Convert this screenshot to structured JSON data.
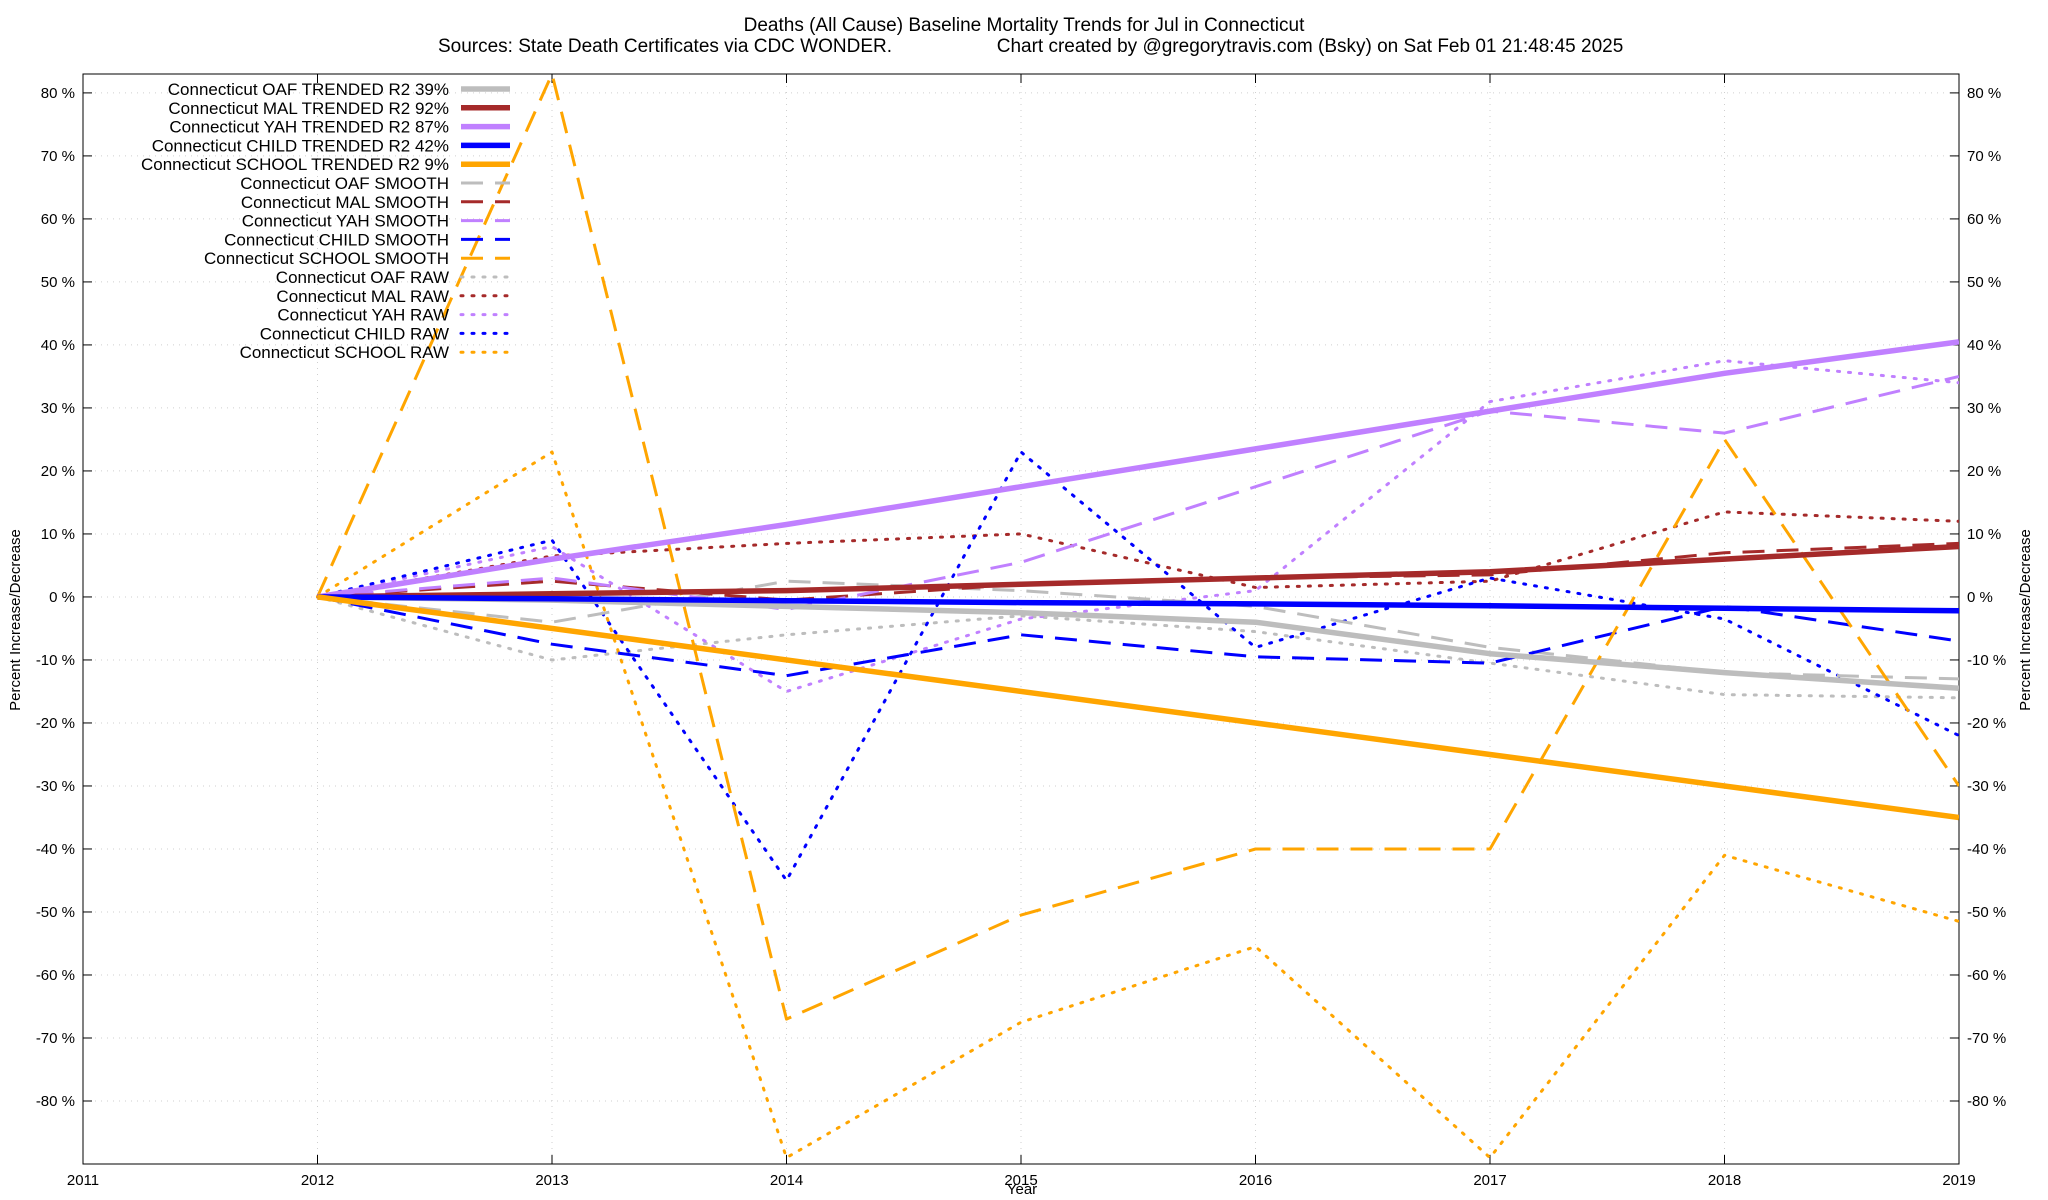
{
  "chart_data": {
    "type": "line",
    "title": "Deaths (All Cause)  Baseline Mortality Trends for Jul in Connecticut",
    "subtitle_left": "Sources: State Death Certificates via CDC WONDER.",
    "subtitle_right": "Chart created by @gregorytravis.com (Bsky) on Sat Feb 01 21:48:45 2025",
    "xlabel": "Year",
    "ylabel": "Percent Increase/Decrease",
    "ylabel_right": "Percent Increase/Decrease",
    "xlim": [
      2011,
      2019
    ],
    "ylim": [
      -90,
      83
    ],
    "x_ticks": [
      2011,
      2012,
      2013,
      2014,
      2015,
      2016,
      2017,
      2018,
      2019
    ],
    "y_ticks": [
      80,
      70,
      60,
      50,
      40,
      30,
      20,
      10,
      0,
      -10,
      -20,
      -30,
      -40,
      -50,
      -60,
      -70,
      -80
    ],
    "y_tick_suffix": " %",
    "grid": true,
    "legend_position": "top-left",
    "series": [
      {
        "name": "Connecticut OAF TRENDED R2  39%",
        "style": "trend",
        "color": "#bdbdbd",
        "x": [
          2012,
          2013,
          2014,
          2015,
          2016,
          2017,
          2018,
          2019
        ],
        "y": [
          0,
          -0.5,
          -1.5,
          -2.5,
          -4,
          -9,
          -12,
          -14.5
        ]
      },
      {
        "name": "Connecticut MAL TRENDED R2  92%",
        "style": "trend",
        "color": "#a52a2a",
        "x": [
          2012,
          2013,
          2014,
          2015,
          2016,
          2017,
          2018,
          2019
        ],
        "y": [
          0,
          0.5,
          1,
          2,
          3,
          4,
          6,
          8
        ]
      },
      {
        "name": "Connecticut YAH TRENDED R2  87%",
        "style": "trend",
        "color": "#c080ff",
        "x": [
          2012,
          2013,
          2014,
          2015,
          2016,
          2017,
          2018,
          2019
        ],
        "y": [
          0,
          6,
          11.5,
          17.5,
          23.5,
          29.5,
          35.5,
          40.5
        ]
      },
      {
        "name": "Connecticut CHILD TRENDED R2  42%",
        "style": "trend",
        "color": "#0000ff",
        "x": [
          2012,
          2013,
          2014,
          2015,
          2016,
          2017,
          2018,
          2019
        ],
        "y": [
          0,
          -0.3,
          -0.6,
          -0.9,
          -1.1,
          -1.4,
          -1.8,
          -2.2
        ]
      },
      {
        "name": "Connecticut SCHOOL TRENDED R2   9%",
        "style": "trend",
        "color": "#ffa500",
        "x": [
          2012,
          2019
        ],
        "y": [
          0,
          -35
        ]
      },
      {
        "name": "Connecticut OAF SMOOTH",
        "style": "smooth",
        "color": "#bdbdbd",
        "x": [
          2012,
          2013,
          2014,
          2015,
          2016,
          2017,
          2018,
          2019
        ],
        "y": [
          0,
          -4,
          2.5,
          1,
          -1.5,
          -8,
          -12,
          -13
        ]
      },
      {
        "name": "Connecticut MAL SMOOTH",
        "style": "smooth",
        "color": "#a52a2a",
        "x": [
          2012,
          2013,
          2014,
          2015,
          2016,
          2017,
          2018,
          2019
        ],
        "y": [
          0,
          2.5,
          -0.5,
          2,
          3,
          3.5,
          7,
          8.5
        ]
      },
      {
        "name": "Connecticut YAH SMOOTH",
        "style": "smooth",
        "color": "#c080ff",
        "x": [
          2012,
          2013,
          2014,
          2015,
          2016,
          2017,
          2018,
          2019
        ],
        "y": [
          0,
          3,
          -2,
          5.5,
          17.5,
          29.5,
          26,
          35
        ]
      },
      {
        "name": "Connecticut CHILD SMOOTH",
        "style": "smooth",
        "color": "#0000ff",
        "x": [
          2012,
          2013,
          2014,
          2015,
          2016,
          2017,
          2018,
          2019
        ],
        "y": [
          0,
          -7.5,
          -12.5,
          -6,
          -9.5,
          -10.5,
          -1.5,
          -7
        ]
      },
      {
        "name": "Connecticut SCHOOL SMOOTH",
        "style": "smooth",
        "color": "#ffa500",
        "x": [
          2012,
          2013,
          2014,
          2015,
          2016,
          2017,
          2018,
          2019
        ],
        "y": [
          0,
          83,
          -67,
          -50.5,
          -40,
          -40,
          25,
          -30
        ]
      },
      {
        "name": "Connecticut OAF RAW",
        "style": "raw",
        "color": "#bdbdbd",
        "x": [
          2012,
          2013,
          2014,
          2015,
          2016,
          2017,
          2018,
          2019
        ],
        "y": [
          0,
          -10,
          -6,
          -3,
          -5.5,
          -10.5,
          -15.5,
          -16
        ]
      },
      {
        "name": "Connecticut MAL RAW",
        "style": "raw",
        "color": "#a52a2a",
        "x": [
          2012,
          2013,
          2014,
          2015,
          2016,
          2017,
          2018,
          2019
        ],
        "y": [
          0,
          6.5,
          8.5,
          10,
          1.5,
          2.5,
          13.5,
          12
        ]
      },
      {
        "name": "Connecticut YAH RAW",
        "style": "raw",
        "color": "#c080ff",
        "x": [
          2012,
          2013,
          2014,
          2015,
          2016,
          2017,
          2018,
          2019
        ],
        "y": [
          0,
          8,
          -15,
          -3.5,
          1,
          31,
          37.5,
          34
        ]
      },
      {
        "name": "Connecticut CHILD RAW",
        "style": "raw",
        "color": "#0000ff",
        "x": [
          2012,
          2013,
          2014,
          2015,
          2016,
          2017,
          2018,
          2019
        ],
        "y": [
          0,
          9,
          -45,
          23,
          -8,
          3,
          -3.5,
          -22
        ]
      },
      {
        "name": "Connecticut SCHOOL RAW",
        "style": "raw",
        "color": "#ffa500",
        "x": [
          2012,
          2013,
          2014,
          2015,
          2016,
          2017,
          2018,
          2019
        ],
        "y": [
          0,
          23,
          -89,
          -67.5,
          -55.5,
          -89,
          -41,
          -51.5
        ]
      }
    ]
  }
}
